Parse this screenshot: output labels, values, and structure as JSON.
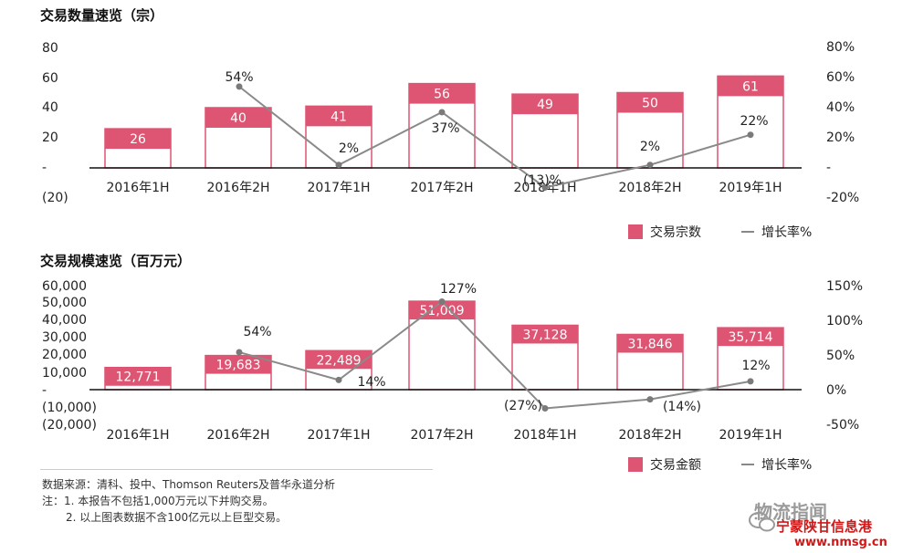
{
  "colors": {
    "bar_fill": "#dd5573",
    "bar_stroke": "#dd5573",
    "line": "#8a8a8a",
    "point": "#7a7a7a",
    "axis": "#111111"
  },
  "chart_data": [
    {
      "type": "bar",
      "title": "交易数量速览（宗）",
      "categories": [
        "2016年1H",
        "2016年2H",
        "2017年1H",
        "2017年2H",
        "2018年1H",
        "2018年2H",
        "2019年1H"
      ],
      "series": [
        {
          "name": "交易宗数",
          "values": [
            26,
            40,
            41,
            56,
            49,
            50,
            61
          ],
          "labels": [
            "26",
            "40",
            "41",
            "56",
            "49",
            "50",
            "61"
          ]
        },
        {
          "name": "增长率%",
          "type": "line",
          "values": [
            null,
            54,
            2,
            37,
            -13,
            2,
            22
          ],
          "labels": [
            "",
            "54%",
            "2%",
            "37%",
            "(13)%",
            "2%",
            "22%"
          ]
        }
      ],
      "left_axis": {
        "ylim": [
          -20,
          80
        ],
        "tick_labels": [
          "80",
          "60",
          "40",
          "20",
          "-",
          "(20)"
        ]
      },
      "right_axis": {
        "ylim": [
          -20,
          80
        ],
        "tick_labels": [
          "80%",
          "60%",
          "40%",
          "20%",
          "-",
          "-20%"
        ]
      },
      "legend": [
        "交易宗数",
        "增长率%"
      ],
      "legend_position": "bottom-right"
    },
    {
      "type": "bar",
      "title": "交易规模速览（百万元）",
      "categories": [
        "2016年1H",
        "2016年2H",
        "2017年1H",
        "2017年2H",
        "2018年1H",
        "2018年2H",
        "2019年1H"
      ],
      "series": [
        {
          "name": "交易金额",
          "values": [
            12771,
            19683,
            22489,
            51009,
            37128,
            31846,
            35714
          ],
          "labels": [
            "12,771",
            "19,683",
            "22,489",
            "51,009",
            "37,128",
            "31,846",
            "35,714"
          ]
        },
        {
          "name": "增长率%",
          "type": "line",
          "values": [
            null,
            54,
            14,
            127,
            -27,
            -14,
            12
          ],
          "labels": [
            "",
            "54%",
            "14%",
            "127%",
            "(27%)",
            "(14%)",
            "12%"
          ]
        }
      ],
      "left_axis": {
        "ylim": [
          -20000,
          60000
        ],
        "tick_labels": [
          "60,000",
          "50,000",
          "40,000",
          "30,000",
          "20,000",
          "10,000",
          "-",
          "(10,000)",
          "(20,000)"
        ]
      },
      "right_axis": {
        "ylim": [
          -50,
          150
        ],
        "tick_labels": [
          "150%",
          "100%",
          "50%",
          "0%",
          "-50%"
        ]
      },
      "legend": [
        "交易金额",
        "增长率%"
      ],
      "legend_position": "bottom-right"
    }
  ],
  "notes": {
    "source": "数据来源：清科、投中、Thomson Reuters及普华永道分析",
    "note1": "注：1. 本报告不包括1,000万元以下并购交易。",
    "note2": "2. 以上图表数据不含100亿元以上巨型交易。"
  },
  "watermark": {
    "wechat": "物流指闻",
    "site_name": "宁蒙陕甘信息港",
    "site_url": "www.nmsg.cn"
  }
}
